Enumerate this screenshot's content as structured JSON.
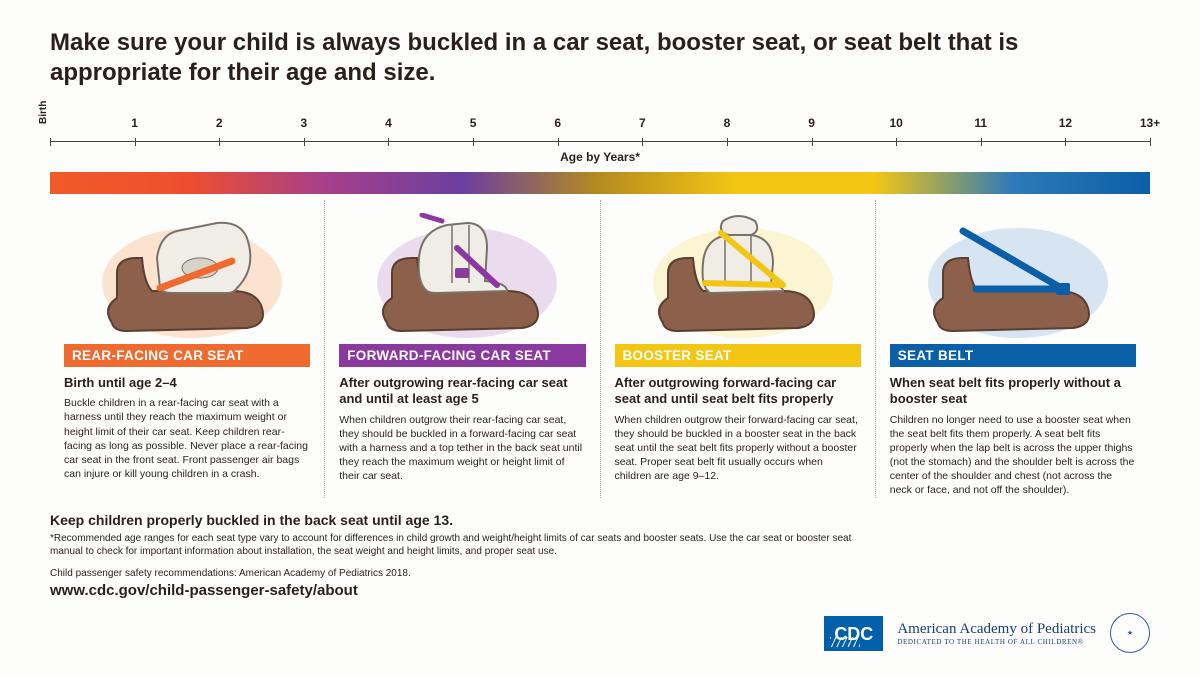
{
  "headline": "Make sure your child is always buckled in a car seat, booster seat, or seat belt that is appropriate for their age and size.",
  "timeline": {
    "birth_label": "Birth",
    "axis_label": "Age by Years*",
    "ticks": [
      "1",
      "2",
      "3",
      "4",
      "5",
      "6",
      "7",
      "8",
      "9",
      "10",
      "11",
      "12",
      "13+"
    ],
    "gradient_stops": [
      "#f05a28",
      "#ef4e2e",
      "#a63f8a",
      "#6b3fa0",
      "#b58b1e",
      "#f3c614",
      "#f3c614",
      "#2f7ab8",
      "#0a5fa6"
    ]
  },
  "panels": [
    {
      "accent": "#ef6a2e",
      "glow": "#f7b27a",
      "label": "REAR-FACING CAR SEAT",
      "subtitle": "Birth until age 2–4",
      "body": "Buckle children in a rear-facing car seat with a harness until they reach the maximum weight or height limit of their car seat. Keep children rear-facing as long as possible. Never place a rear-facing car seat in the front seat. Front passenger air bags can injure or kill young children in a crash."
    },
    {
      "accent": "#8a3a9e",
      "glow": "#c79ad4",
      "label": "FORWARD-FACING CAR SEAT",
      "subtitle": "After outgrowing rear-facing car seat and until at least age 5",
      "body": "When children outgrow their rear-facing car seat, they should be buckled in a forward-facing car seat with a harness and a top tether in the back seat until they reach the maximum weight or height limit of their car seat."
    },
    {
      "accent": "#f3c614",
      "glow": "#f7e58a",
      "label": "BOOSTER SEAT",
      "subtitle": "After outgrowing forward-facing car seat and until seat belt fits properly",
      "body": "When children outgrow their forward-facing car seat, they should be buckled in a booster seat in the back seat until the seat belt fits properly without a booster seat. Proper seat belt fit usually occurs when children are age 9–12."
    },
    {
      "accent": "#0a5fa6",
      "glow": "#8fb8e0",
      "label": "SEAT BELT",
      "subtitle": "When seat belt fits properly without a booster seat",
      "body": "Children no longer need to use a booster seat when the seat belt fits them properly. A seat belt fits properly when the lap belt is across the upper thighs (not the stomach) and the shoulder belt is across the center of the shoulder and chest (not across the neck or face, and not off the shoulder)."
    }
  ],
  "keep_line": "Keep children properly buckled in the back seat until age 13.",
  "footnote": "*Recommended age ranges for each seat type vary to account for differences in child growth and weight/height limits of car seats and booster seats. Use the car seat or booster seat manual to check for important information about installation, the seat weight and height limits, and proper seat use.",
  "source": "Child passenger safety recommendations: American Academy of Pediatrics 2018.",
  "url": "www.cdc.gov/child-passenger-safety/about",
  "logos": {
    "cdc": "CDC",
    "aap_title": "American Academy of Pediatrics",
    "aap_sub": "DEDICATED TO THE HEALTH OF ALL CHILDREN®"
  },
  "style": {
    "seat_base_fill": "#8c604a",
    "seat_base_stroke": "#5a3e30",
    "child_seat_fill": "#f0ece6",
    "child_seat_stroke": "#7a7268"
  }
}
